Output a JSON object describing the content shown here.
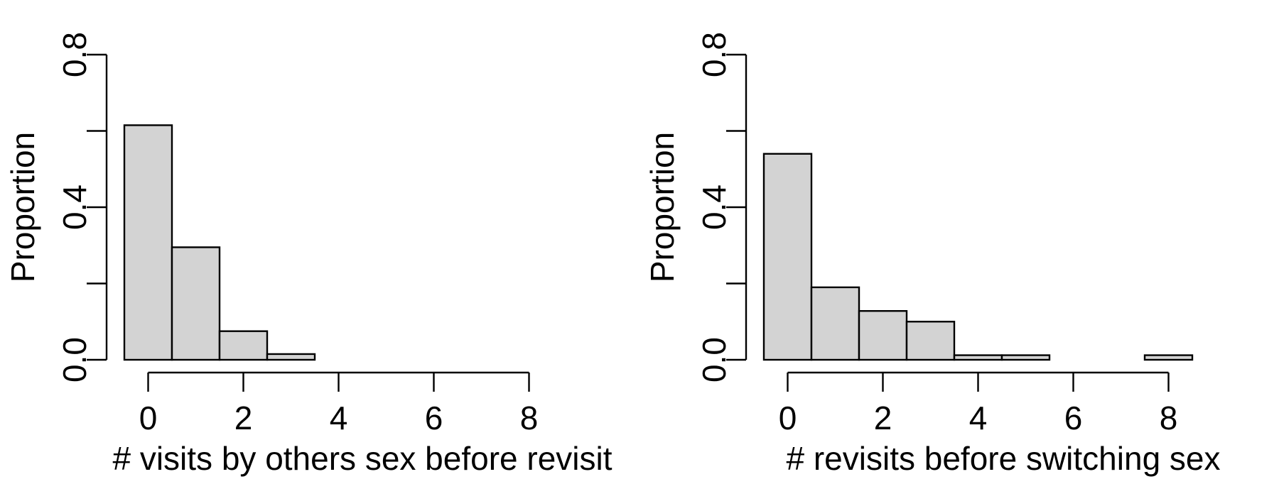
{
  "chart_data": [
    {
      "type": "bar",
      "title": "",
      "xlabel": "# visits by others sex before revisit",
      "ylabel": "Proportion",
      "categories": [
        0,
        1,
        2,
        3,
        4,
        5,
        6,
        7,
        8,
        9
      ],
      "values": [
        0.615,
        0.295,
        0.075,
        0.015,
        0,
        0,
        0,
        0,
        0,
        0
      ],
      "xlim": [
        -0.5,
        9.5
      ],
      "ylim": [
        0,
        0.8
      ],
      "x_ticks": [
        "0",
        "2",
        "4",
        "6",
        "8"
      ],
      "y_ticks": [
        "0.0",
        "0.4",
        "0.8"
      ],
      "y_minor_ticks": [
        0.2,
        0.6
      ],
      "bar_color": "#d3d3d3",
      "grid": false
    },
    {
      "type": "bar",
      "title": "",
      "xlabel": "# revisits before switching sex",
      "ylabel": "Proportion",
      "categories": [
        0,
        1,
        2,
        3,
        4,
        5,
        6,
        7,
        8,
        9
      ],
      "values": [
        0.54,
        0.19,
        0.128,
        0.1,
        0.012,
        0.012,
        0,
        0,
        0.012,
        0
      ],
      "xlim": [
        -0.5,
        9.5
      ],
      "ylim": [
        0,
        0.8
      ],
      "x_ticks": [
        "0",
        "2",
        "4",
        "6",
        "8"
      ],
      "y_ticks": [
        "0.0",
        "0.4",
        "0.8"
      ],
      "y_minor_ticks": [
        0.2,
        0.6
      ],
      "bar_color": "#d3d3d3",
      "grid": false
    }
  ]
}
